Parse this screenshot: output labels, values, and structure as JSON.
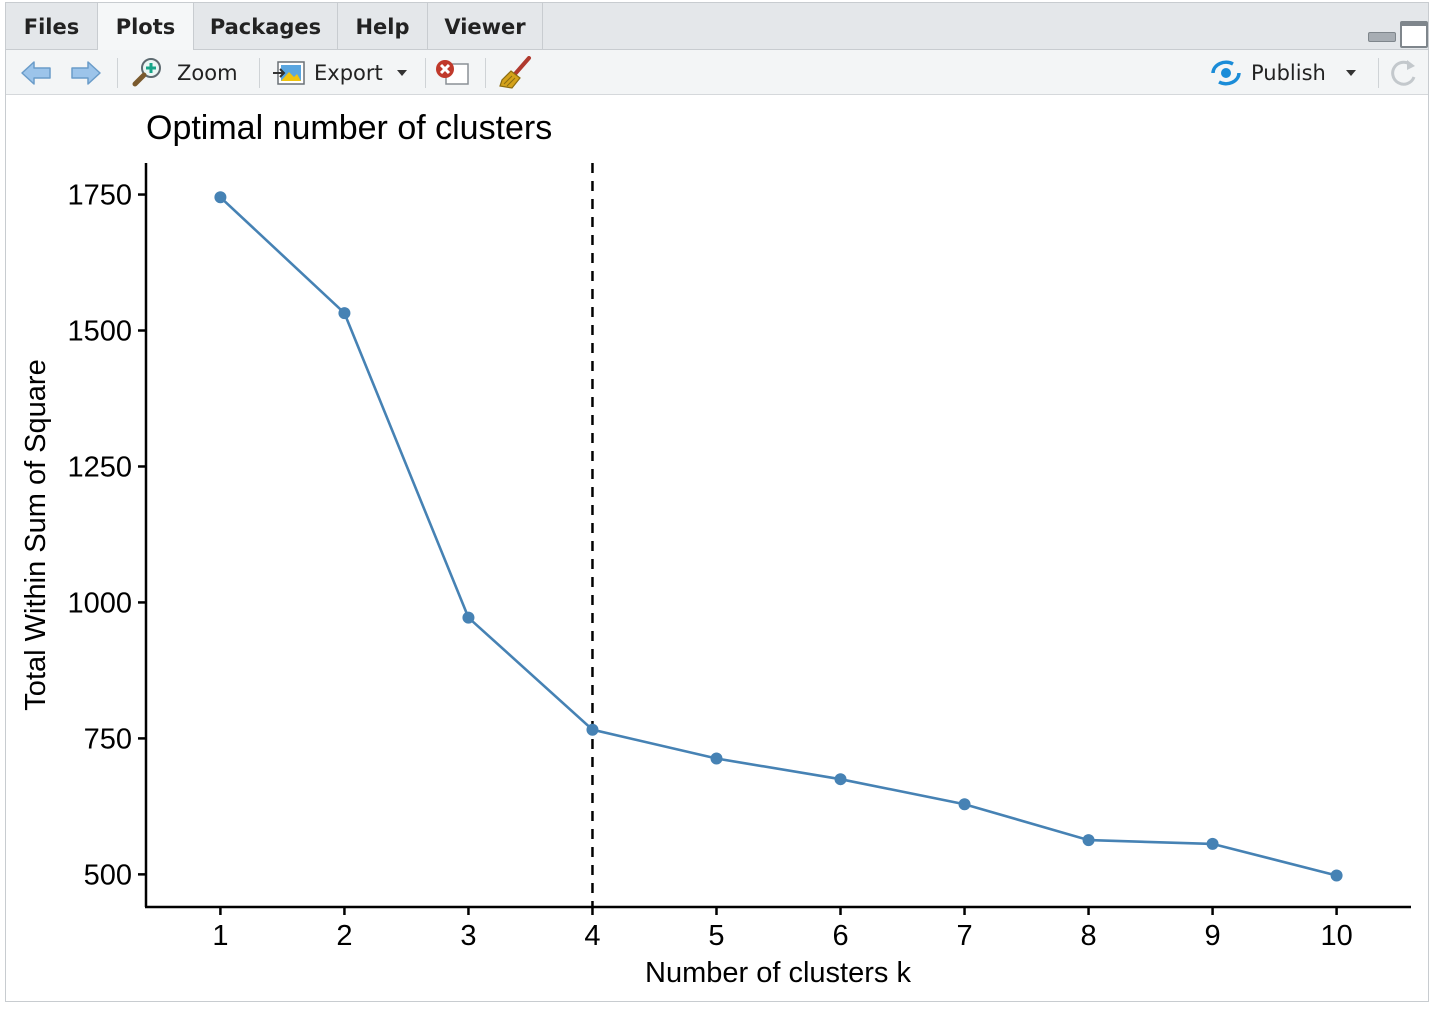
{
  "tabs": [
    "Files",
    "Plots",
    "Packages",
    "Help",
    "Viewer"
  ],
  "active_tab": "Plots",
  "toolbar": {
    "zoom_label": "Zoom",
    "export_label": "Export",
    "publish_label": "Publish"
  },
  "icons": {
    "back": "arrow-left-icon",
    "forward": "arrow-right-icon",
    "zoom": "magnifier-plus-icon",
    "export": "export-image-icon",
    "remove": "remove-plot-icon",
    "clear": "broom-icon",
    "publish": "publish-icon",
    "refresh": "refresh-icon"
  },
  "colors": {
    "series": "#4682B4",
    "vline": "#000000",
    "publish_icon": "#1a8cd8",
    "remove_icon": "#c0392b"
  },
  "chart_data": {
    "type": "line",
    "title": "Optimal number of clusters",
    "xlabel": "Number of clusters k",
    "ylabel": "Total Within Sum of Square",
    "x": [
      1,
      2,
      3,
      4,
      5,
      6,
      7,
      8,
      9,
      10
    ],
    "x_tick_labels": [
      "1",
      "2",
      "3",
      "4",
      "5",
      "6",
      "7",
      "8",
      "9",
      "10"
    ],
    "y": [
      1745,
      1532,
      972,
      766,
      713,
      675,
      629,
      563,
      556,
      498
    ],
    "y_ticks": [
      500,
      750,
      1000,
      1250,
      1500,
      1750
    ],
    "y_tick_labels": [
      "500",
      "750",
      "1000",
      "1250",
      "1500",
      "1750"
    ],
    "ylim": [
      440,
      1808
    ],
    "xlim": [
      0.4,
      10.6
    ],
    "vline_x": 4,
    "grid": false,
    "legend": "none"
  }
}
